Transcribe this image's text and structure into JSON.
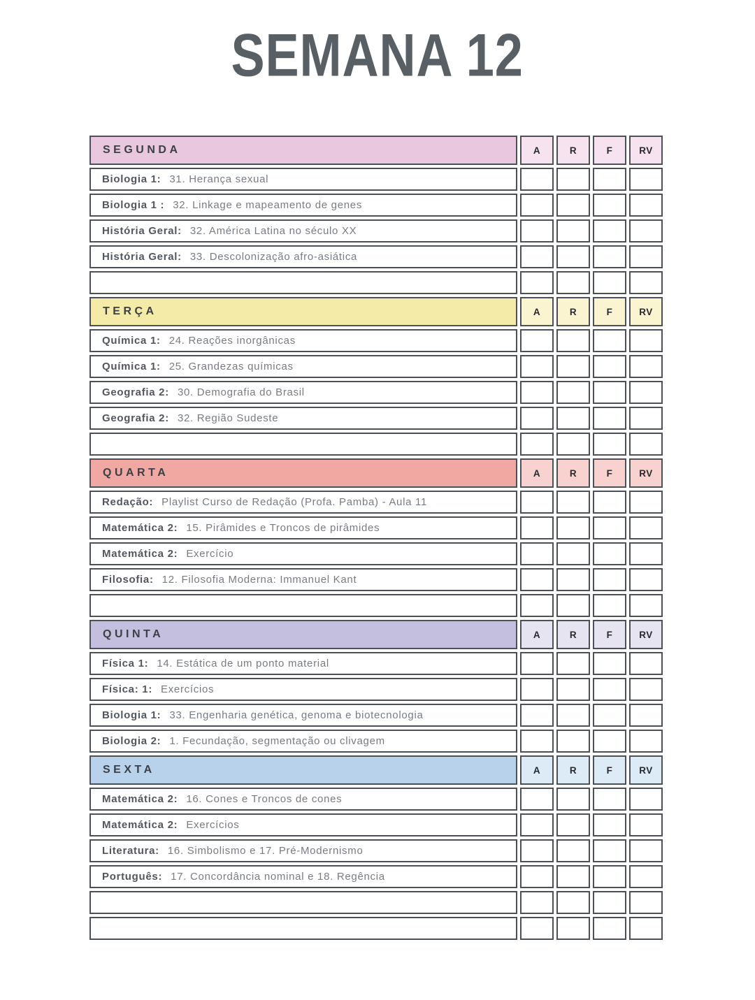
{
  "title": "SEMANA 12",
  "table": {
    "check_columns": [
      "A",
      "R",
      "F",
      "RV"
    ],
    "border_color": "#4c5157",
    "sections": [
      {
        "day": "SEGUNDA",
        "band_color": "#e8c7df",
        "cell_color": "#f6e3ef",
        "rows": [
          {
            "label": "Biologia 1:",
            "content": "31. Herança sexual"
          },
          {
            "label": "Biologia 1 :",
            "content": "32. Linkage e mapeamento de genes"
          },
          {
            "label": "História Geral:",
            "content": "32. América Latina no século XX"
          },
          {
            "label": "História Geral:",
            "content": "33. Descolonização afro-asiática"
          },
          {
            "label": "",
            "content": ""
          }
        ]
      },
      {
        "day": "TERÇA",
        "band_color": "#f4eba8",
        "cell_color": "#faf4d0",
        "rows": [
          {
            "label": "Química 1:",
            "content": "24. Reações inorgânicas"
          },
          {
            "label": "Química 1:",
            "content": "25. Grandezas químicas"
          },
          {
            "label": "Geografia 2:",
            "content": "30. Demografia do Brasil"
          },
          {
            "label": "Geografia 2:",
            "content": "32. Região Sudeste"
          },
          {
            "label": "",
            "content": ""
          }
        ]
      },
      {
        "day": "QUARTA",
        "band_color": "#f1a8a2",
        "cell_color": "#f8d2cf",
        "rows": [
          {
            "label": "Redação:",
            "content": "Playlist Curso de Redação (Profa. Pamba) - Aula 11"
          },
          {
            "label": "Matemática 2:",
            "content": "15. Pirâmides e Troncos de pirâmides"
          },
          {
            "label": "Matemática 2:",
            "content": "Exercício"
          },
          {
            "label": "Filosofia:",
            "content": "12. Filosofia Moderna: Immanuel Kant"
          },
          {
            "label": "",
            "content": ""
          }
        ]
      },
      {
        "day": "QUINTA",
        "band_color": "#c5bfdf",
        "cell_color": "#e6e4f1",
        "rows": [
          {
            "label": "Física 1:",
            "content": "14. Estática de um ponto material"
          },
          {
            "label": "Física: 1:",
            "content": "Exercícios"
          },
          {
            "label": "Biologia 1:",
            "content": "33. Engenharia genética, genoma e biotecnologia"
          },
          {
            "label": "Biologia 2:",
            "content": "1. Fecundação, segmentação ou clivagem"
          }
        ]
      },
      {
        "day": "SEXTA",
        "band_color": "#b7d2ea",
        "cell_color": "#dcebf6",
        "rows": [
          {
            "label": "Matemática 2:",
            "content": "16. Cones e Troncos de cones"
          },
          {
            "label": "Matemática 2:",
            "content": "Exercícios"
          },
          {
            "label": "Literatura:",
            "content": "16. Simbolismo e  17. Pré-Modernismo"
          },
          {
            "label": "Português:",
            "content": "17. Concordância nominal e  18. Regência"
          },
          {
            "label": "",
            "content": ""
          },
          {
            "label": "",
            "content": ""
          }
        ]
      }
    ]
  }
}
